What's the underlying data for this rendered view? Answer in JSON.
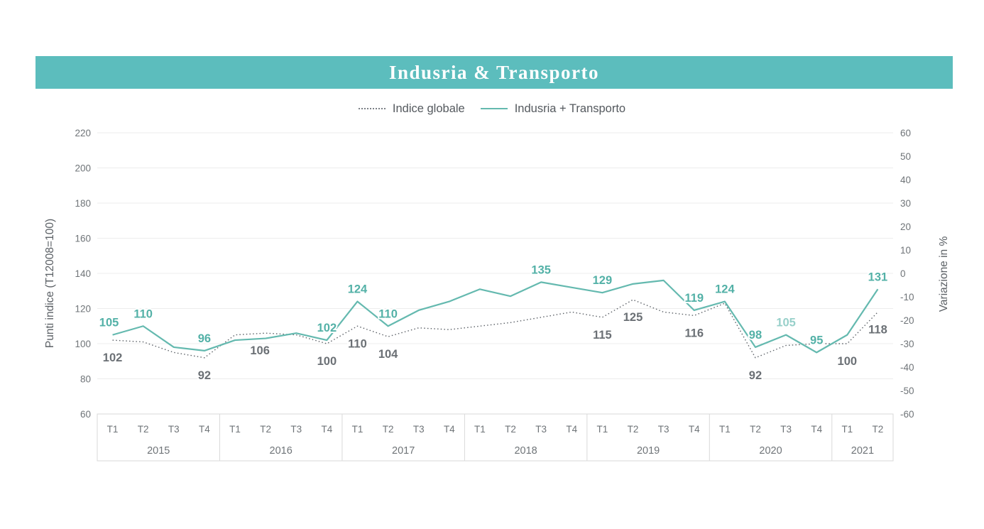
{
  "banner": {
    "title": "Indusria & Transporto",
    "bg_color": "#5cbdbd",
    "text_color": "#ffffff"
  },
  "legend": {
    "items": [
      {
        "label": "Indice globale",
        "style": "dotted",
        "color": "#7c8186"
      },
      {
        "label": "Indusria + Transporto",
        "style": "solid",
        "color": "#64b9af"
      }
    ]
  },
  "colors": {
    "grid": "#ececec",
    "axis_box": "#d9d9d9",
    "tick_text": "#6f7478",
    "teal_line": "#64b9af",
    "teal_label": "#53b1a7",
    "gray_line": "#5d6268",
    "gray_label": "#6b7075"
  },
  "chart_data": {
    "type": "line",
    "title": "Indusria & Transporto",
    "grid": true,
    "legend_position": "top",
    "left_axis": {
      "label": "Punti indice (T12008=100)",
      "min": 60,
      "max": 220,
      "ticks": [
        220,
        200,
        180,
        160,
        140,
        120,
        100,
        80,
        60
      ]
    },
    "right_axis": {
      "label": "Variazione in %",
      "min": -60,
      "max": 60,
      "ticks": [
        60,
        50,
        40,
        30,
        20,
        10,
        0,
        -10,
        -20,
        -30,
        -40,
        -50,
        -60
      ]
    },
    "x_axis": {
      "year_groups": [
        {
          "label": "2015",
          "quarters": [
            "T1",
            "T2",
            "T3",
            "T4"
          ]
        },
        {
          "label": "2016",
          "quarters": [
            "T1",
            "T2",
            "T3",
            "T4"
          ]
        },
        {
          "label": "2017",
          "quarters": [
            "T1",
            "T2",
            "T3",
            "T4"
          ]
        },
        {
          "label": "2018",
          "quarters": [
            "T1",
            "T2",
            "T3",
            "T4"
          ]
        },
        {
          "label": "2019",
          "quarters": [
            "T1",
            "T2",
            "T3",
            "T4"
          ]
        },
        {
          "label": "2020",
          "quarters": [
            "T1",
            "T2",
            "T3",
            "T4"
          ]
        },
        {
          "label": "2021",
          "quarters": [
            "T1",
            "T2"
          ]
        }
      ]
    },
    "series": [
      {
        "name": "Indice globale",
        "line_style": "dotted",
        "color": "#5d6268",
        "label_color": "#6b7075",
        "label_pos": "below",
        "values": [
          102,
          101,
          95,
          92,
          105,
          106,
          105,
          100,
          110,
          104,
          109,
          108,
          110,
          112,
          115,
          118,
          115,
          125,
          118,
          116,
          123,
          92,
          99,
          100,
          100,
          118
        ],
        "point_labels": [
          {
            "i": 0,
            "text": "102"
          },
          {
            "i": 3,
            "text": "92"
          },
          {
            "i": 5,
            "text": "106",
            "dx": -8
          },
          {
            "i": 7,
            "text": "100"
          },
          {
            "i": 8,
            "text": "110"
          },
          {
            "i": 9,
            "text": "104"
          },
          {
            "i": 16,
            "text": "115"
          },
          {
            "i": 17,
            "text": "125"
          },
          {
            "i": 19,
            "text": "116"
          },
          {
            "i": 21,
            "text": "92"
          },
          {
            "i": 24,
            "text": "100"
          },
          {
            "i": 25,
            "text": "118"
          }
        ]
      },
      {
        "name": "Indusria + Transporto",
        "line_style": "solid",
        "color": "#64b9af",
        "label_color": "#53b1a7",
        "label_pos": "above",
        "values": [
          105,
          110,
          98,
          96,
          102,
          103,
          106,
          102,
          124,
          110,
          119,
          124,
          131,
          127,
          135,
          132,
          129,
          134,
          136,
          119,
          124,
          98,
          105,
          95,
          105,
          131
        ],
        "point_labels": [
          {
            "i": 0,
            "text": "105",
            "dx": -5
          },
          {
            "i": 1,
            "text": "110"
          },
          {
            "i": 3,
            "text": "96"
          },
          {
            "i": 7,
            "text": "102"
          },
          {
            "i": 8,
            "text": "124"
          },
          {
            "i": 9,
            "text": "110"
          },
          {
            "i": 14,
            "text": "135"
          },
          {
            "i": 16,
            "text": "129"
          },
          {
            "i": 19,
            "text": "119"
          },
          {
            "i": 20,
            "text": "124"
          },
          {
            "i": 21,
            "text": "98"
          },
          {
            "i": 22,
            "text": "105",
            "muted": true
          },
          {
            "i": 23,
            "text": "95"
          },
          {
            "i": 25,
            "text": "131"
          }
        ]
      }
    ]
  }
}
